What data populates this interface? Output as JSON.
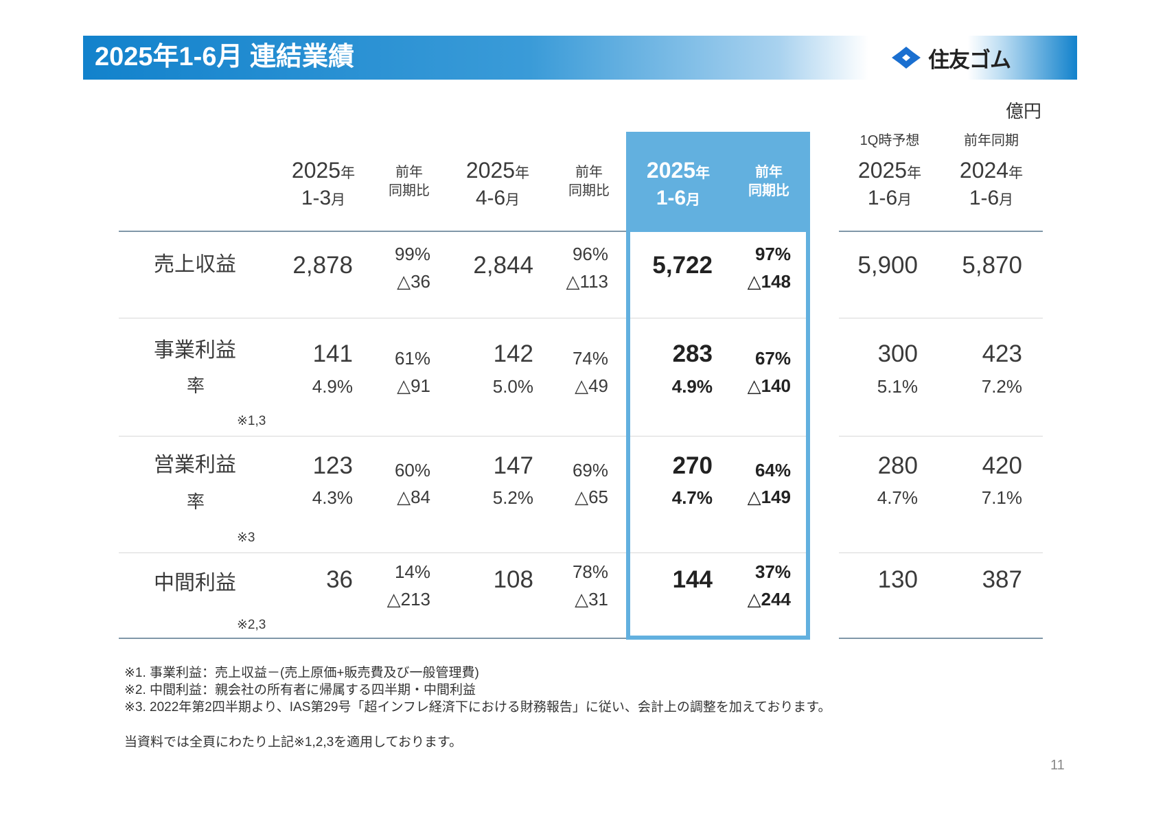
{
  "header": {
    "title": "2025年1-6月 連結業績",
    "logo_text": "住友ゴム",
    "logo_icon": "sumitomo-diamond-mark"
  },
  "unit": "億円",
  "colors": {
    "title_bar": "#1282cc",
    "highlight": "#62b0df"
  },
  "columns": [
    {
      "sub": "",
      "year": "2025",
      "year_suffix": "年",
      "month": "1-3",
      "month_suffix": "月"
    },
    {
      "sub": "",
      "line1": "前年",
      "line2": "同期比"
    },
    {
      "sub": "",
      "year": "2025",
      "year_suffix": "年",
      "month": "4-6",
      "month_suffix": "月"
    },
    {
      "sub": "",
      "line1": "前年",
      "line2": "同期比"
    },
    {
      "sub": "",
      "year": "2025",
      "year_suffix": "年",
      "month": "1-6",
      "month_suffix": "月"
    },
    {
      "sub": "",
      "line1": "前年",
      "line2": "同期比"
    },
    {
      "sub": "1Q時予想",
      "year": "2025",
      "year_suffix": "年",
      "month": "1-6",
      "month_suffix": "月"
    },
    {
      "sub": "前年同期",
      "year": "2024",
      "year_suffix": "年",
      "month": "1-6",
      "month_suffix": "月"
    }
  ],
  "rows": [
    {
      "label": "売上収益",
      "rate_label": "",
      "note": "",
      "values": [
        {
          "v": "2,878"
        },
        {
          "p": "99%",
          "d": "△36"
        },
        {
          "v": "2,844"
        },
        {
          "p": "96%",
          "d": "△113"
        },
        {
          "v": "5,722"
        },
        {
          "p": "97%",
          "d": "△148"
        },
        {
          "v": "5,900"
        },
        {
          "v": "5,870"
        }
      ]
    },
    {
      "label": "事業利益",
      "rate_label": "率",
      "note": "※1,3",
      "values": [
        {
          "v": "141",
          "r": "4.9%"
        },
        {
          "p": "61%",
          "d": "△91"
        },
        {
          "v": "142",
          "r": "5.0%"
        },
        {
          "p": "74%",
          "d": "△49"
        },
        {
          "v": "283",
          "r": "4.9%"
        },
        {
          "p": "67%",
          "d": "△140"
        },
        {
          "v": "300",
          "r": "5.1%"
        },
        {
          "v": "423",
          "r": "7.2%"
        }
      ]
    },
    {
      "label": "営業利益",
      "rate_label": "率",
      "note": "※3",
      "values": [
        {
          "v": "123",
          "r": "4.3%"
        },
        {
          "p": "60%",
          "d": "△84"
        },
        {
          "v": "147",
          "r": "5.2%"
        },
        {
          "p": "69%",
          "d": "△65"
        },
        {
          "v": "270",
          "r": "4.7%"
        },
        {
          "p": "64%",
          "d": "△149"
        },
        {
          "v": "280",
          "r": "4.7%"
        },
        {
          "v": "420",
          "r": "7.1%"
        }
      ]
    },
    {
      "label": "中間利益",
      "rate_label": "",
      "note": "※2,3",
      "values": [
        {
          "v": "36"
        },
        {
          "p": "14%",
          "d": "△213"
        },
        {
          "v": "108"
        },
        {
          "p": "78%",
          "d": "△31"
        },
        {
          "v": "144"
        },
        {
          "p": "37%",
          "d": "△244"
        },
        {
          "v": "130"
        },
        {
          "v": "387"
        }
      ]
    }
  ],
  "footnotes": [
    "※1. 事業利益：売上収益－(売上原価+販売費及び一般管理費)",
    "※2. 中間利益：親会社の所有者に帰属する四半期・中間利益",
    "※3. 2022年第2四半期より、IAS第29号「超インフレ経済下における財務報告」に従い、会計上の調整を加えております。",
    "当資料では全頁にわたり上記※1,2,3を適用しております。"
  ],
  "page_number": "11"
}
